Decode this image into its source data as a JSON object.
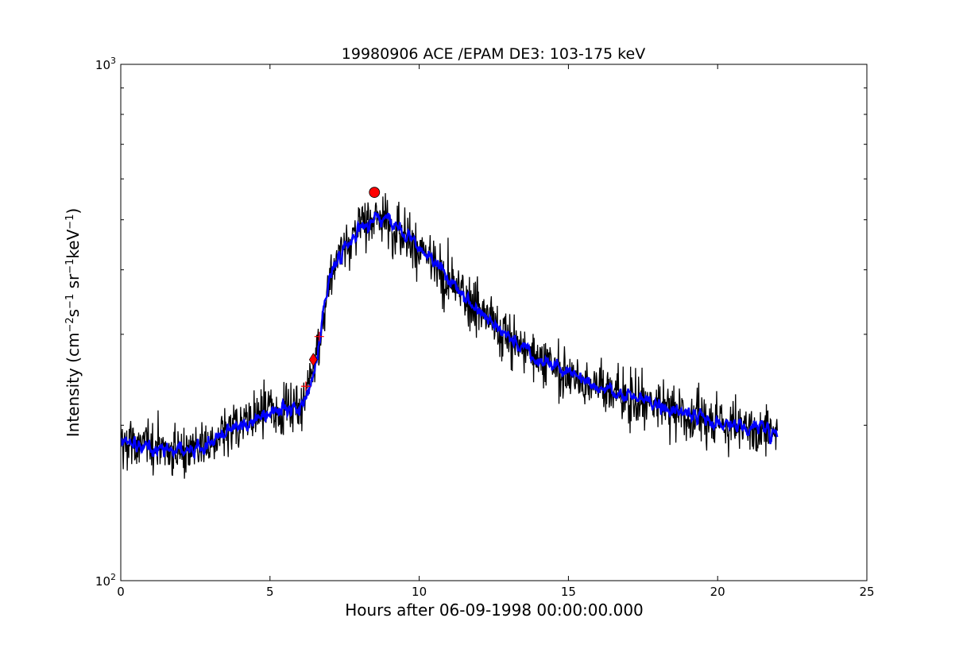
{
  "chart_data": {
    "type": "line",
    "title": "19980906 ACE /EPAM DE3: 103-175 keV",
    "xlabel": "Hours after 06-09-1998 00:00:00.000",
    "ylabel": {
      "base": "Intensity (cm",
      "parts": [
        {
          "text": "Intensity (cm",
          "sup": false
        },
        {
          "text": "−2",
          "sup": true
        },
        {
          "text": "s",
          "sup": false
        },
        {
          "text": "−1",
          "sup": true
        },
        {
          "text": " sr",
          "sup": false
        },
        {
          "text": "−1",
          "sup": true
        },
        {
          "text": "keV",
          "sup": false
        },
        {
          "text": "−1",
          "sup": true
        },
        {
          "text": ")",
          "sup": false
        }
      ]
    },
    "xlim": [
      0,
      25
    ],
    "ylim": [
      100,
      1000
    ],
    "yscale": "log",
    "xticks": [
      0,
      5,
      10,
      15,
      20,
      25
    ],
    "xtick_labels": [
      "0",
      "5",
      "10",
      "15",
      "20",
      "25"
    ],
    "ytick_labels": [
      {
        "value": 100,
        "base": "10",
        "exp": "2"
      },
      {
        "value": 1000,
        "base": "10",
        "exp": "3"
      }
    ],
    "grid": false,
    "legend": "none",
    "colors": {
      "raw": "#000000",
      "smoothed": "#0000ff",
      "marker": "#ff0000"
    },
    "profile": [
      [
        0.0,
        185
      ],
      [
        1.0,
        182
      ],
      [
        2.0,
        178
      ],
      [
        3.0,
        183
      ],
      [
        4.0,
        200
      ],
      [
        5.0,
        213
      ],
      [
        6.0,
        218
      ],
      [
        6.3,
        235
      ],
      [
        6.5,
        260
      ],
      [
        6.7,
        300
      ],
      [
        7.0,
        390
      ],
      [
        7.5,
        445
      ],
      [
        8.0,
        480
      ],
      [
        8.5,
        505
      ],
      [
        9.0,
        500
      ],
      [
        9.5,
        475
      ],
      [
        10.0,
        440
      ],
      [
        11.0,
        380
      ],
      [
        12.0,
        335
      ],
      [
        13.0,
        295
      ],
      [
        14.0,
        270
      ],
      [
        15.0,
        252
      ],
      [
        16.0,
        238
      ],
      [
        17.0,
        227
      ],
      [
        18.0,
        218
      ],
      [
        19.0,
        210
      ],
      [
        20.0,
        203
      ],
      [
        21.0,
        198
      ],
      [
        22.0,
        195
      ]
    ],
    "x_end": 22.0,
    "markers": [
      {
        "label": "onset-marker",
        "symbol": "diamond",
        "x": 6.45,
        "y": 268
      },
      {
        "label": "peak-marker",
        "symbol": "circle",
        "x": 8.5,
        "y": 565
      },
      {
        "label": "cross-marker-1",
        "symbol": "plus",
        "x": 6.2,
        "y": 238
      },
      {
        "label": "cross-marker-2",
        "symbol": "plus",
        "x": 6.65,
        "y": 297
      }
    ]
  }
}
